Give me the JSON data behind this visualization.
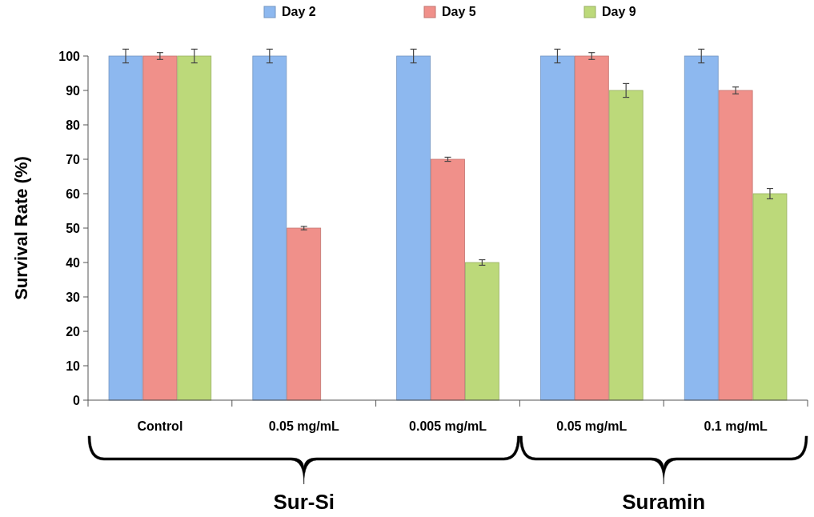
{
  "chart_data": {
    "type": "bar",
    "ylabel": "Survival Rate (%)",
    "categories": [
      "Control",
      "0.05 mg/mL",
      "0.005 mg/mL",
      "0.05 mg/mL",
      "0.1 mg/mL"
    ],
    "series": [
      {
        "name": "Day 2",
        "color": "#8db8ef",
        "values": [
          100,
          100,
          100,
          100,
          100
        ],
        "errors": [
          2,
          2,
          2,
          2,
          2
        ]
      },
      {
        "name": "Day 5",
        "color": "#f0908a",
        "values": [
          100,
          50,
          70,
          100,
          90
        ],
        "errors": [
          1,
          0.5,
          0.6,
          1,
          1
        ]
      },
      {
        "name": "Day 9",
        "color": "#bcd97a",
        "values": [
          100,
          0,
          40,
          90,
          60
        ],
        "errors": [
          2,
          null,
          0.8,
          2,
          1.5
        ]
      }
    ],
    "ylim": [
      0,
      100
    ],
    "yticks": [
      0,
      10,
      20,
      30,
      40,
      50,
      60,
      70,
      80,
      90,
      100
    ],
    "grid": false,
    "legend": "top",
    "annotations": [
      "Sur-Si",
      "Suramin"
    ]
  }
}
